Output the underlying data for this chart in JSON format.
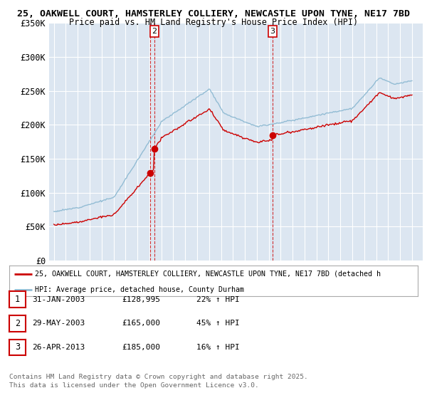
{
  "title_line1": "25, OAKWELL COURT, HAMSTERLEY COLLIERY, NEWCASTLE UPON TYNE, NE17 7BD",
  "title_line2": "Price paid vs. HM Land Registry's House Price Index (HPI)",
  "background_color": "#ffffff",
  "plot_bg_color": "#dce6f1",
  "grid_color": "#ffffff",
  "red_line_color": "#cc0000",
  "blue_line_color": "#92bcd4",
  "transactions": [
    {
      "date_num": 2003.08,
      "price": 128995,
      "label": "1",
      "show_top_label": false
    },
    {
      "date_num": 2003.42,
      "price": 165000,
      "label": "2",
      "show_top_label": true
    },
    {
      "date_num": 2013.33,
      "price": 185000,
      "label": "3",
      "show_top_label": true
    }
  ],
  "legend_red": "25, OAKWELL COURT, HAMSTERLEY COLLIERY, NEWCASTLE UPON TYNE, NE17 7BD (detached h",
  "legend_blue": "HPI: Average price, detached house, County Durham",
  "footer_line1": "Contains HM Land Registry data © Crown copyright and database right 2025.",
  "footer_line2": "This data is licensed under the Open Government Licence v3.0.",
  "table_rows": [
    {
      "num": "1",
      "date": "31-JAN-2003",
      "price": "£128,995",
      "hpi": "22% ↑ HPI"
    },
    {
      "num": "2",
      "date": "29-MAY-2003",
      "price": "£165,000",
      "hpi": "45% ↑ HPI"
    },
    {
      "num": "3",
      "date": "26-APR-2013",
      "price": "£185,000",
      "hpi": "16% ↑ HPI"
    }
  ],
  "xmin": 1994.6,
  "xmax": 2025.9,
  "ymin": 0,
  "ymax": 350000,
  "yticks": [
    0,
    50000,
    100000,
    150000,
    200000,
    250000,
    300000,
    350000
  ],
  "ytick_labels": [
    "£0",
    "£50K",
    "£100K",
    "£150K",
    "£200K",
    "£250K",
    "£300K",
    "£350K"
  ]
}
